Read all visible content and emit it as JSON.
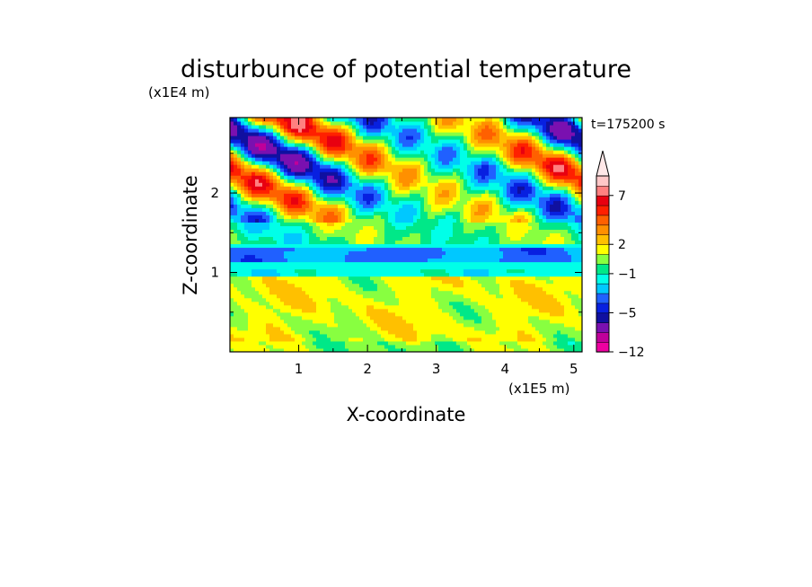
{
  "chart_data": {
    "type": "heatmap",
    "title": "disturbunce of potential temperature",
    "xlabel": "X-coordinate",
    "ylabel": "Z-coordinate",
    "x_unit_label": "(x1E5 m)",
    "y_unit_label": "(x1E4 m)",
    "time_label": "t=175200 s",
    "xlim": [
      0,
      5.12
    ],
    "ylim": [
      0,
      2.95
    ],
    "x_ticks": [
      "1",
      "2",
      "3",
      "4",
      "5"
    ],
    "y_ticks": [
      "1",
      "2"
    ],
    "colorbar": {
      "tick_labels": [
        "7",
        "2",
        "−1",
        "−5",
        "−12"
      ],
      "levels": [
        -12,
        -10,
        -8,
        -6,
        -5,
        -4,
        -3,
        -2,
        -1,
        0,
        1,
        2,
        3,
        4,
        5,
        6,
        7,
        8,
        9
      ],
      "colors": [
        "#ee00a0",
        "#c0009a",
        "#7a10b0",
        "#1010a0",
        "#0820e0",
        "#2060ff",
        "#00c8ff",
        "#00ffe8",
        "#00e888",
        "#88ff40",
        "#ffff00",
        "#ffc000",
        "#ff9000",
        "#ff6000",
        "#ff2000",
        "#e80010",
        "#ff8080",
        "#ffc8c8"
      ],
      "extend": "max"
    },
    "field_description_regions": [
      {
        "z_range": [
          0.0,
          0.9
        ],
        "value_range": [
          1,
          3
        ]
      },
      {
        "z_range": [
          0.9,
          1.35
        ],
        "value_range": [
          -2,
          -1
        ]
      },
      {
        "z_range": [
          1.35,
          2.95
        ],
        "value_range": [
          -8,
          8
        ]
      }
    ]
  }
}
